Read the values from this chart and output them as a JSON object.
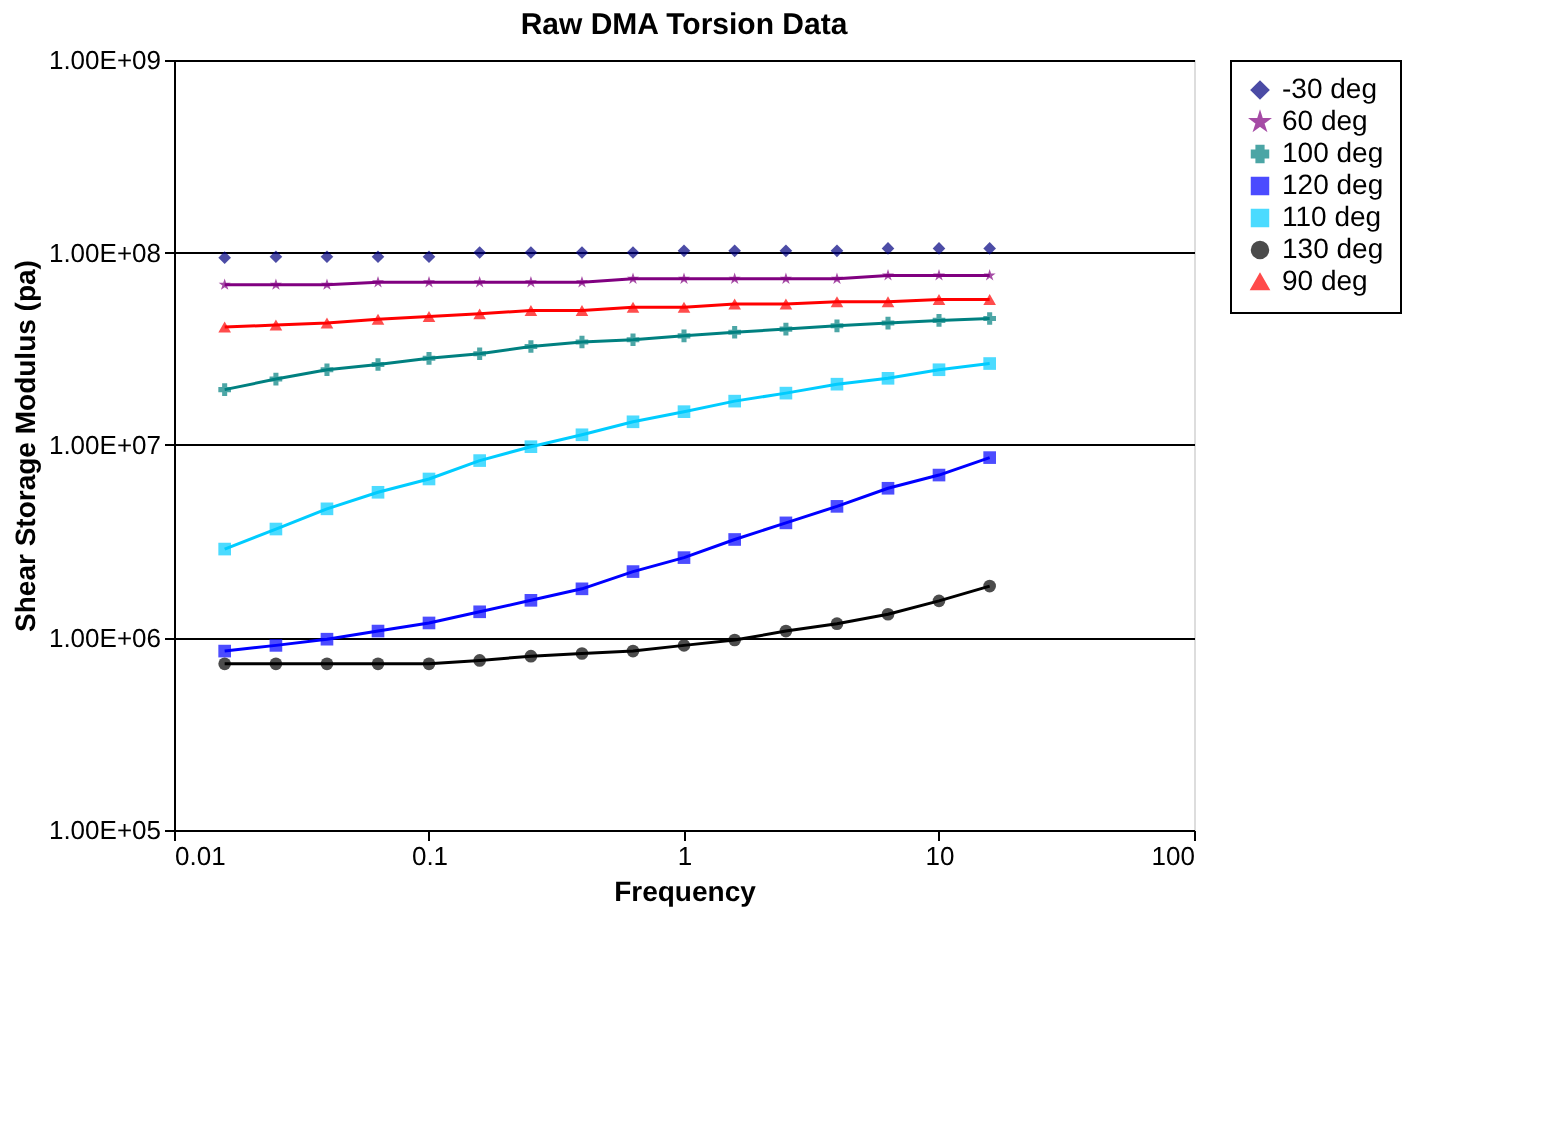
{
  "chart_data": {
    "type": "line",
    "title": "Raw DMA Torsion Data",
    "xlabel": "Frequency",
    "ylabel": "Shear Storage Modulus (pa)",
    "x": [
      0.0158,
      0.0251,
      0.0398,
      0.0631,
      0.1,
      0.158,
      0.251,
      0.398,
      0.631,
      1,
      1.58,
      2.51,
      3.98,
      6.31,
      10,
      15.8
    ],
    "series": [
      {
        "name": "-30 deg",
        "type": "scatter",
        "marker": "diamond",
        "color": "#000080",
        "values": [
          94000000.0,
          95000000.0,
          95000000.0,
          95000000.0,
          95000000.0,
          100000000.0,
          100000000.0,
          100000000.0,
          100000000.0,
          102000000.0,
          102000000.0,
          102000000.0,
          102000000.0,
          105000000.0,
          105000000.0,
          105000000.0
        ]
      },
      {
        "name": "60 deg",
        "marker": "star",
        "color": "#800080",
        "values": [
          68000000.0,
          68000000.0,
          68000000.0,
          70000000.0,
          70000000.0,
          70000000.0,
          70000000.0,
          70000000.0,
          73000000.0,
          73000000.0,
          73000000.0,
          73000000.0,
          73000000.0,
          76000000.0,
          76000000.0,
          76000000.0
        ]
      },
      {
        "name": "100 deg",
        "marker": "cross",
        "color": "#008080",
        "values": [
          19400000.0,
          22000000.0,
          24600000.0,
          26200000.0,
          28200000.0,
          29800000.0,
          32500000.0,
          34300000.0,
          35200000.0,
          36900000.0,
          38500000.0,
          40000000.0,
          41600000.0,
          43000000.0,
          44400000.0,
          45400000.0
        ]
      },
      {
        "name": "120 deg",
        "marker": "square",
        "color": "#0000ff",
        "values": [
          850000.0,
          910000.0,
          980000.0,
          1080000.0,
          1190000.0,
          1360000.0,
          1560000.0,
          1790000.0,
          2200000.0,
          2600000.0,
          3230000.0,
          3940000.0,
          4800000.0,
          5960000.0,
          6980000.0,
          8600000.0
        ]
      },
      {
        "name": "110 deg",
        "marker": "square",
        "color": "#00ccff",
        "values": [
          2880000.0,
          3660000.0,
          4660000.0,
          5680000.0,
          6660000.0,
          8300000.0,
          9800000.0,
          11300000.0,
          13200000.0,
          14900000.0,
          16900000.0,
          18600000.0,
          20700000.0,
          22200000.0,
          24600000.0,
          26500000.0
        ]
      },
      {
        "name": "130 deg",
        "marker": "circle",
        "color": "#000000",
        "values": [
          730000.0,
          730000.0,
          730000.0,
          730000.0,
          730000.0,
          760000.0,
          800000.0,
          826000.0,
          850000.0,
          910000.0,
          970000.0,
          1080000.0,
          1180000.0,
          1320000.0,
          1550000.0,
          1850000.0
        ]
      },
      {
        "name": "90 deg",
        "marker": "triangle",
        "color": "#ff0000",
        "values": [
          41000000.0,
          42000000.0,
          43000000.0,
          45000000.0,
          46500000.0,
          48000000.0,
          50000000.0,
          50000000.0,
          52000000.0,
          52000000.0,
          54000000.0,
          54000000.0,
          55500000.0,
          55500000.0,
          57000000.0,
          57000000.0
        ]
      }
    ],
    "log": "xy",
    "xlim": [
      0.01,
      100
    ],
    "xticks": [
      0.01,
      0.1,
      1,
      10,
      100
    ],
    "ylim": [
      100000,
      1000000000
    ],
    "yticks": [
      {
        "value": 100000,
        "label": "1.00E+05"
      },
      {
        "value": 1000000,
        "label": "1.00E+06"
      },
      {
        "value": 10000000,
        "label": "1.00E+07"
      },
      {
        "value": 100000000,
        "label": "1.00E+08"
      },
      {
        "value": 1000000000,
        "label": "1.00E+09"
      }
    ],
    "grid": "y",
    "legend": "right",
    "line_style": "solid"
  }
}
